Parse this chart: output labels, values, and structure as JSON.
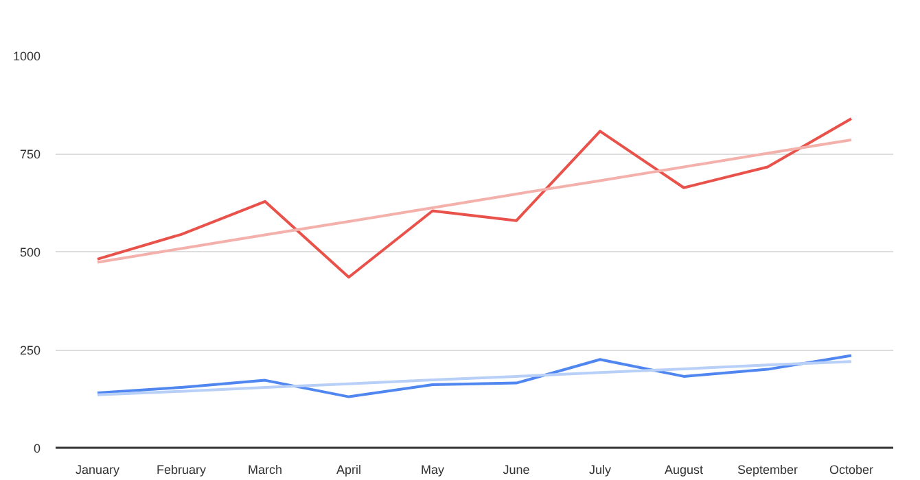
{
  "chart_data": {
    "type": "line",
    "categories": [
      "January",
      "February",
      "March",
      "April",
      "May",
      "June",
      "July",
      "August",
      "September",
      "October"
    ],
    "series": [
      {
        "color": "#e8524a",
        "values": [
          481,
          544,
          628,
          435,
          604,
          579,
          807,
          663,
          716,
          839
        ]
      },
      {
        "color": "#4f86f0",
        "values": [
          140,
          154,
          172,
          130,
          161,
          165,
          225,
          182,
          200,
          235
        ]
      },
      {
        "color": "#f4b1ac",
        "values": [
          473,
          508,
          543,
          577,
          612,
          647,
          681,
          716,
          751,
          785
        ]
      },
      {
        "color": "#b8cff8",
        "values": [
          135,
          144,
          154,
          163,
          173,
          182,
          192,
          201,
          211,
          220
        ]
      }
    ],
    "ylim": [
      0,
      1000
    ],
    "yticks": [
      0,
      250,
      500,
      750,
      1000
    ],
    "grid": "y"
  }
}
